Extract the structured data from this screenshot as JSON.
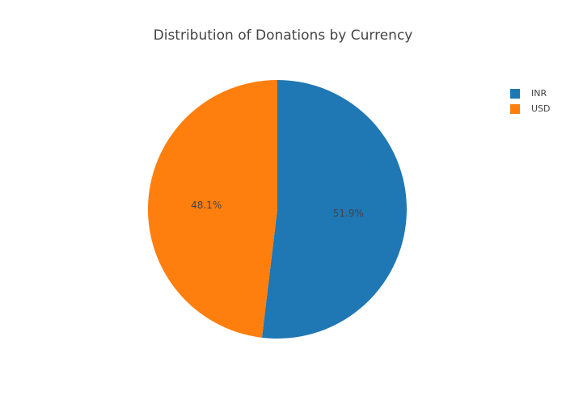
{
  "chart_data": {
    "type": "pie",
    "title": "Distribution of Donations by Currency",
    "labels": [
      "INR",
      "USD"
    ],
    "values": [
      51.9,
      48.1
    ],
    "percent_labels": [
      "51.9%",
      "48.1%"
    ],
    "colors": [
      "#1f77b4",
      "#ff7f0e"
    ],
    "legend": {
      "position": "top-right",
      "entries": [
        "INR",
        "USD"
      ]
    }
  }
}
